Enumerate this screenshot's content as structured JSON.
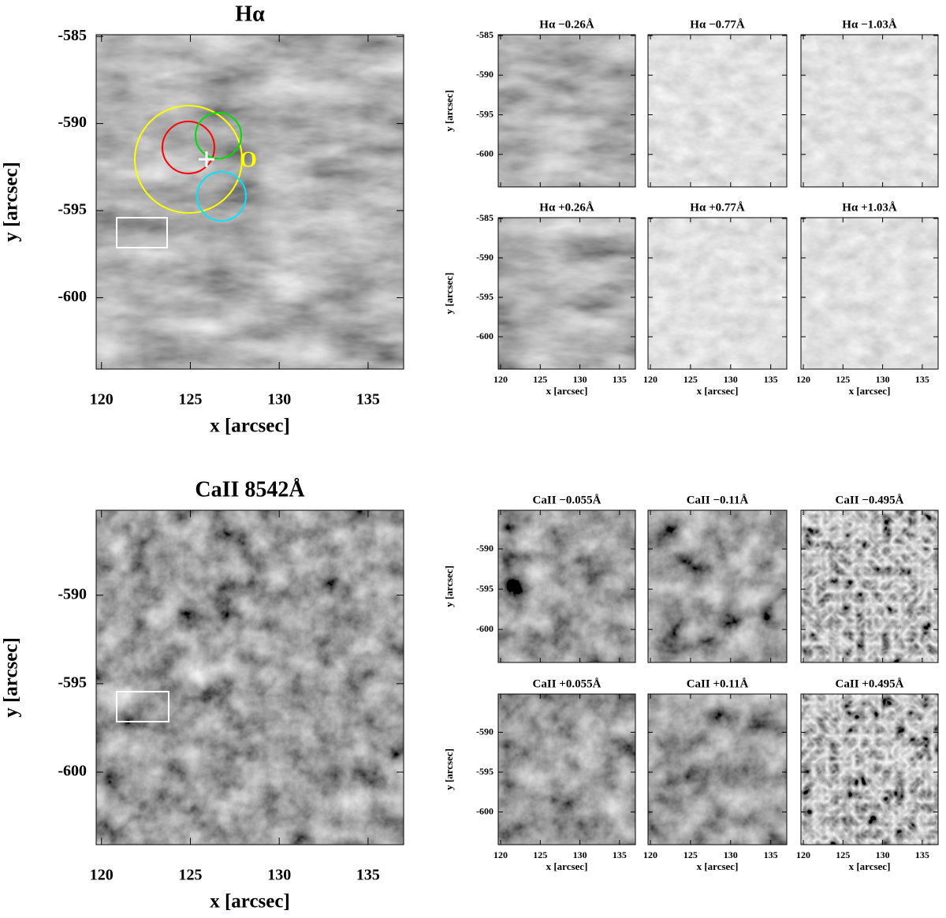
{
  "chart_data": [
    {
      "type": "image",
      "title": "Hα",
      "xlabel": "x [arcsec]",
      "ylabel": "y [arcsec]",
      "xlim": [
        119.7,
        137
      ],
      "ylim": [
        -604.1,
        -584.9
      ],
      "xticks": [
        120,
        125,
        130,
        135
      ],
      "yticks": [
        -585,
        -590,
        -595,
        -600
      ],
      "xtick_labels": true,
      "ytick_labels": true,
      "annotation": "O"
    },
    {
      "type": "image",
      "title": "Hα −0.26Å",
      "ylabel": "y [arcsec]",
      "xlim": [
        119.7,
        137
      ],
      "ylim": [
        -604.1,
        -584.9
      ],
      "xticks": [
        120,
        125,
        130,
        135
      ],
      "yticks": [
        -585,
        -590,
        -595,
        -600
      ],
      "xtick_labels": false,
      "ytick_labels": true
    },
    {
      "type": "image",
      "title": "Hα −0.77Å",
      "xlim": [
        119.7,
        137
      ],
      "ylim": [
        -604.1,
        -584.9
      ],
      "xticks": [
        120,
        125,
        130,
        135
      ],
      "yticks": [
        -585,
        -590,
        -595,
        -600
      ],
      "xtick_labels": false,
      "ytick_labels": false
    },
    {
      "type": "image",
      "title": "Hα −1.03Å",
      "xlim": [
        119.7,
        137
      ],
      "ylim": [
        -604.1,
        -584.9
      ],
      "xticks": [
        120,
        125,
        130,
        135
      ],
      "yticks": [
        -585,
        -590,
        -595,
        -600
      ],
      "xtick_labels": false,
      "ytick_labels": false
    },
    {
      "type": "image",
      "title": "Hα +0.26Å",
      "xlabel": "x [arcsec]",
      "ylabel": "y [arcsec]",
      "xlim": [
        119.7,
        137
      ],
      "ylim": [
        -604.1,
        -584.9
      ],
      "xticks": [
        120,
        125,
        130,
        135
      ],
      "yticks": [
        -585,
        -590,
        -595,
        -600
      ],
      "xtick_labels": true,
      "ytick_labels": true
    },
    {
      "type": "image",
      "title": "Hα +0.77Å",
      "xlabel": "x [arcsec]",
      "xlim": [
        119.7,
        137
      ],
      "ylim": [
        -604.1,
        -584.9
      ],
      "xticks": [
        120,
        125,
        130,
        135
      ],
      "yticks": [
        -585,
        -590,
        -595,
        -600
      ],
      "xtick_labels": true,
      "ytick_labels": false
    },
    {
      "type": "image",
      "title": "Hα +1.03Å",
      "xlabel": "x [arcsec]",
      "xlim": [
        119.7,
        137
      ],
      "ylim": [
        -604.1,
        -584.9
      ],
      "xticks": [
        120,
        125,
        130,
        135
      ],
      "yticks": [
        -585,
        -590,
        -595,
        -600
      ],
      "xtick_labels": true,
      "ytick_labels": false
    },
    {
      "type": "image",
      "title": "CaII 8542Å",
      "xlabel": "x [arcsec]",
      "ylabel": "y [arcsec]",
      "xlim": [
        119.7,
        137
      ],
      "ylim": [
        -604.1,
        -585.2
      ],
      "xticks": [
        120,
        125,
        130,
        135
      ],
      "yticks": [
        -590,
        -595,
        -600
      ],
      "xtick_labels": true,
      "ytick_labels": true
    },
    {
      "type": "image",
      "title": "CaII −0.055Å",
      "ylabel": "y [arcsec]",
      "xlim": [
        119.7,
        137
      ],
      "ylim": [
        -604.1,
        -585.2
      ],
      "xticks": [
        120,
        125,
        130,
        135
      ],
      "yticks": [
        -590,
        -595,
        -600
      ],
      "xtick_labels": false,
      "ytick_labels": true
    },
    {
      "type": "image",
      "title": "CaII −0.11Å",
      "xlim": [
        119.7,
        137
      ],
      "ylim": [
        -604.1,
        -585.2
      ],
      "xticks": [
        120,
        125,
        130,
        135
      ],
      "yticks": [
        -590,
        -595,
        -600
      ],
      "xtick_labels": false,
      "ytick_labels": false
    },
    {
      "type": "image",
      "title": "CaII −0.495Å",
      "xlim": [
        119.7,
        137
      ],
      "ylim": [
        -604.1,
        -585.2
      ],
      "xticks": [
        120,
        125,
        130,
        135
      ],
      "yticks": [
        -590,
        -595,
        -600
      ],
      "xtick_labels": false,
      "ytick_labels": false
    },
    {
      "type": "image",
      "title": "CaII +0.055Å",
      "xlabel": "x [arcsec]",
      "ylabel": "y [arcsec]",
      "xlim": [
        119.7,
        137
      ],
      "ylim": [
        -604.1,
        -585.2
      ],
      "xticks": [
        120,
        125,
        130,
        135
      ],
      "yticks": [
        -590,
        -595,
        -600
      ],
      "xtick_labels": true,
      "ytick_labels": true
    },
    {
      "type": "image",
      "title": "CaII +0.11Å",
      "xlabel": "x [arcsec]",
      "xlim": [
        119.7,
        137
      ],
      "ylim": [
        -604.1,
        -585.2
      ],
      "xticks": [
        120,
        125,
        130,
        135
      ],
      "yticks": [
        -590,
        -595,
        -600
      ],
      "xtick_labels": true,
      "ytick_labels": false
    },
    {
      "type": "image",
      "title": "CaII +0.495Å",
      "xlabel": "x [arcsec]",
      "xlim": [
        119.7,
        137
      ],
      "ylim": [
        -604.1,
        -585.2
      ],
      "xticks": [
        120,
        125,
        130,
        135
      ],
      "yticks": [
        -590,
        -595,
        -600
      ],
      "xtick_labels": true,
      "ytick_labels": false
    }
  ]
}
